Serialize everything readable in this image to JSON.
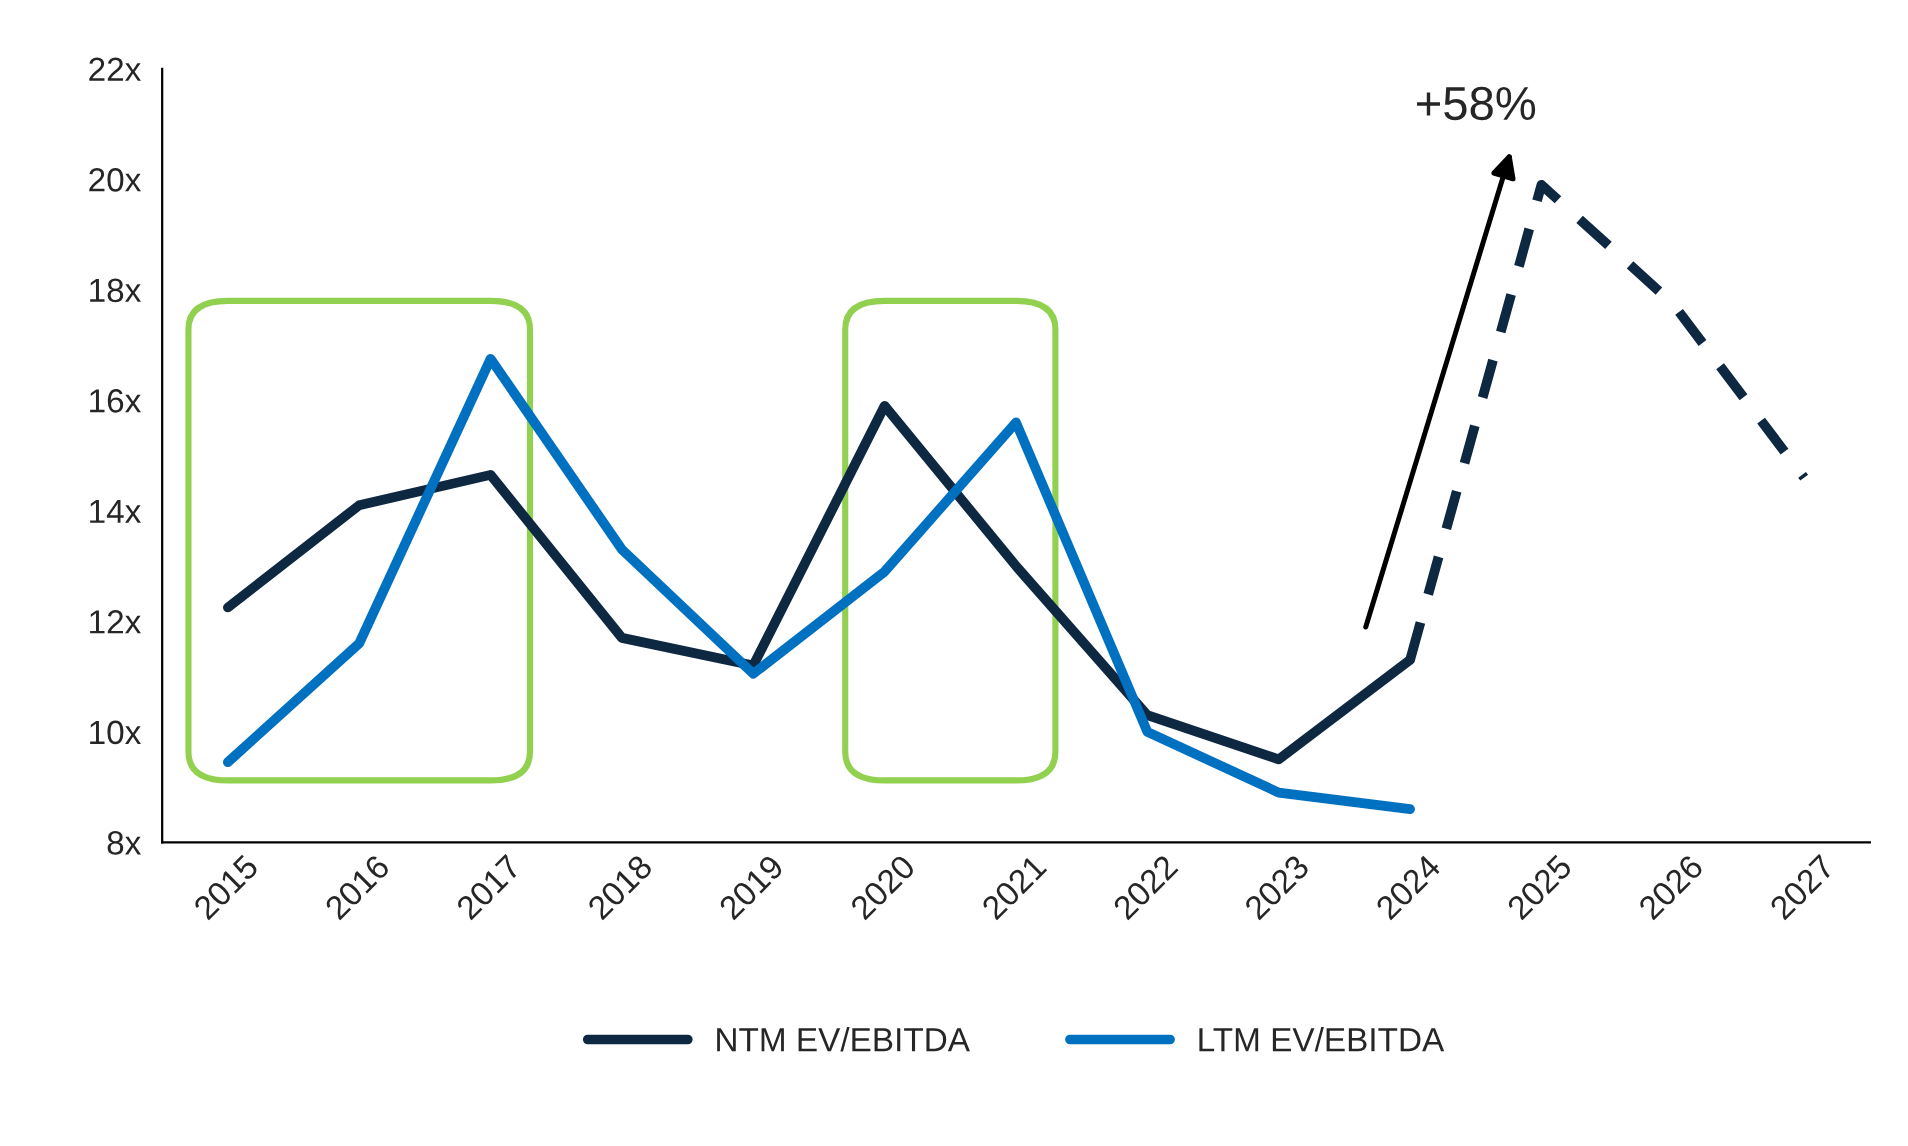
{
  "chart_data": {
    "type": "line",
    "categories": [
      "2015",
      "2016",
      "2017",
      "2018",
      "2019",
      "2020",
      "2021",
      "2022",
      "2023",
      "2024",
      "2025",
      "2026",
      "2027"
    ],
    "series": [
      {
        "name": "NTM EV/EBITDA",
        "color": "#0e2841",
        "values": [
          12.25,
          14.1,
          14.65,
          11.7,
          11.2,
          15.9,
          13.0,
          10.3,
          9.5,
          11.3,
          null,
          null,
          null
        ]
      },
      {
        "color": "#0e2841",
        "line_style": "dashed",
        "values": [
          null,
          null,
          null,
          null,
          null,
          null,
          null,
          null,
          null,
          11.3,
          19.9,
          17.75,
          14.6
        ]
      },
      {
        "name": "LTM EV/EBITDA",
        "color": "#0070c0",
        "values": [
          9.45,
          11.6,
          16.75,
          13.3,
          11.05,
          12.9,
          15.6,
          10.0,
          8.9,
          8.6,
          null,
          null,
          null
        ]
      }
    ],
    "ylim": [
      8,
      22
    ],
    "yticks": [
      {
        "value": 8,
        "label": "8x"
      },
      {
        "value": 10,
        "label": "10x"
      },
      {
        "value": 12,
        "label": "12x"
      },
      {
        "value": 14,
        "label": "14x"
      },
      {
        "value": 16,
        "label": "16x"
      },
      {
        "value": 18,
        "label": "18x"
      },
      {
        "value": 20,
        "label": "20x"
      },
      {
        "value": 22,
        "label": "22x"
      }
    ],
    "annotations": [
      {
        "text": "+58%",
        "x": "2025",
        "y": 19.9
      }
    ],
    "legend": "bottom",
    "grid": false,
    "marker": "none",
    "line_style": "solid"
  }
}
